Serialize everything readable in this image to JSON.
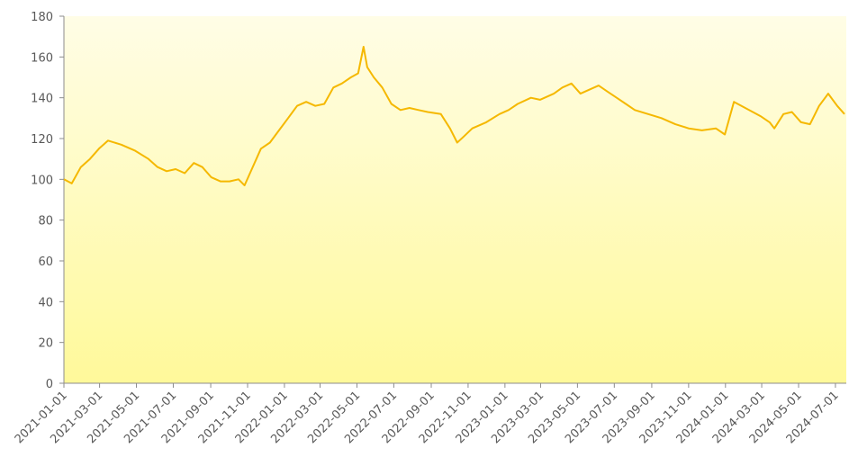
{
  "chart_data": {
    "type": "line",
    "color": "#f5b800",
    "x": [
      "2021-01-01",
      "2021-01-14",
      "2021-01-29",
      "2021-02-13",
      "2021-02-28",
      "2021-03-15",
      "2021-04-06",
      "2021-04-29",
      "2021-05-21",
      "2021-06-05",
      "2021-06-20",
      "2021-07-05",
      "2021-07-20",
      "2021-08-04",
      "2021-08-18",
      "2021-09-02",
      "2021-09-17",
      "2021-10-02",
      "2021-10-17",
      "2021-10-27",
      "2021-11-08",
      "2021-11-23",
      "2021-12-08",
      "2021-12-23",
      "2022-01-07",
      "2022-01-22",
      "2022-02-06",
      "2022-02-21",
      "2022-03-08",
      "2022-03-23",
      "2022-04-06",
      "2022-04-21",
      "2022-05-03",
      "2022-05-12",
      "2022-05-18",
      "2022-05-29",
      "2022-06-12",
      "2022-06-27",
      "2022-07-12",
      "2022-07-27",
      "2022-08-11",
      "2022-08-26",
      "2022-09-17",
      "2022-10-02",
      "2022-10-14",
      "2022-10-25",
      "2022-11-08",
      "2022-12-01",
      "2022-12-23",
      "2023-01-07",
      "2023-01-22",
      "2023-02-13",
      "2023-02-28",
      "2023-03-23",
      "2023-04-06",
      "2023-04-21",
      "2023-05-06",
      "2023-05-21",
      "2023-06-05",
      "2023-06-20",
      "2023-07-05",
      "2023-07-20",
      "2023-08-04",
      "2023-08-26",
      "2023-09-17",
      "2023-10-10",
      "2023-11-01",
      "2023-11-23",
      "2023-12-16",
      "2023-12-31",
      "2024-01-15",
      "2024-02-28",
      "2024-03-14",
      "2024-03-22",
      "2024-04-06",
      "2024-04-20",
      "2024-05-05",
      "2024-05-20",
      "2024-06-04",
      "2024-06-19",
      "2024-07-04",
      "2024-07-16"
    ],
    "values": [
      100,
      98,
      106,
      110,
      115,
      119,
      117,
      114,
      110,
      106,
      104,
      105,
      103,
      108,
      106,
      101,
      99,
      99,
      100,
      97,
      105,
      115,
      118,
      124,
      130,
      136,
      138,
      136,
      137,
      145,
      147,
      150,
      152,
      165,
      155,
      150,
      145,
      137,
      134,
      135,
      134,
      133,
      132,
      125,
      118,
      121,
      125,
      128,
      132,
      134,
      137,
      140,
      139,
      142,
      145,
      147,
      142,
      144,
      146,
      143,
      140,
      137,
      134,
      132,
      130,
      127,
      125,
      124,
      125,
      122,
      138,
      131,
      128,
      125,
      132,
      133,
      128,
      127,
      136,
      142,
      136,
      132
    ],
    "xlim": [
      "2021-01-01",
      "2024-07-19"
    ],
    "xticks": [
      "2021-01-01",
      "2021-03-01",
      "2021-05-01",
      "2021-07-01",
      "2021-09-01",
      "2021-11-01",
      "2022-01-01",
      "2022-03-01",
      "2022-05-01",
      "2022-07-01",
      "2022-09-01",
      "2022-11-01",
      "2023-01-01",
      "2023-03-01",
      "2023-05-01",
      "2023-07-01",
      "2023-09-01",
      "2023-11-01",
      "2024-01-01",
      "2024-03-01",
      "2024-05-01",
      "2024-07-01"
    ],
    "ylim": [
      0,
      180
    ],
    "yticks": [
      0,
      20,
      40,
      60,
      80,
      100,
      120,
      140,
      160,
      180
    ]
  }
}
